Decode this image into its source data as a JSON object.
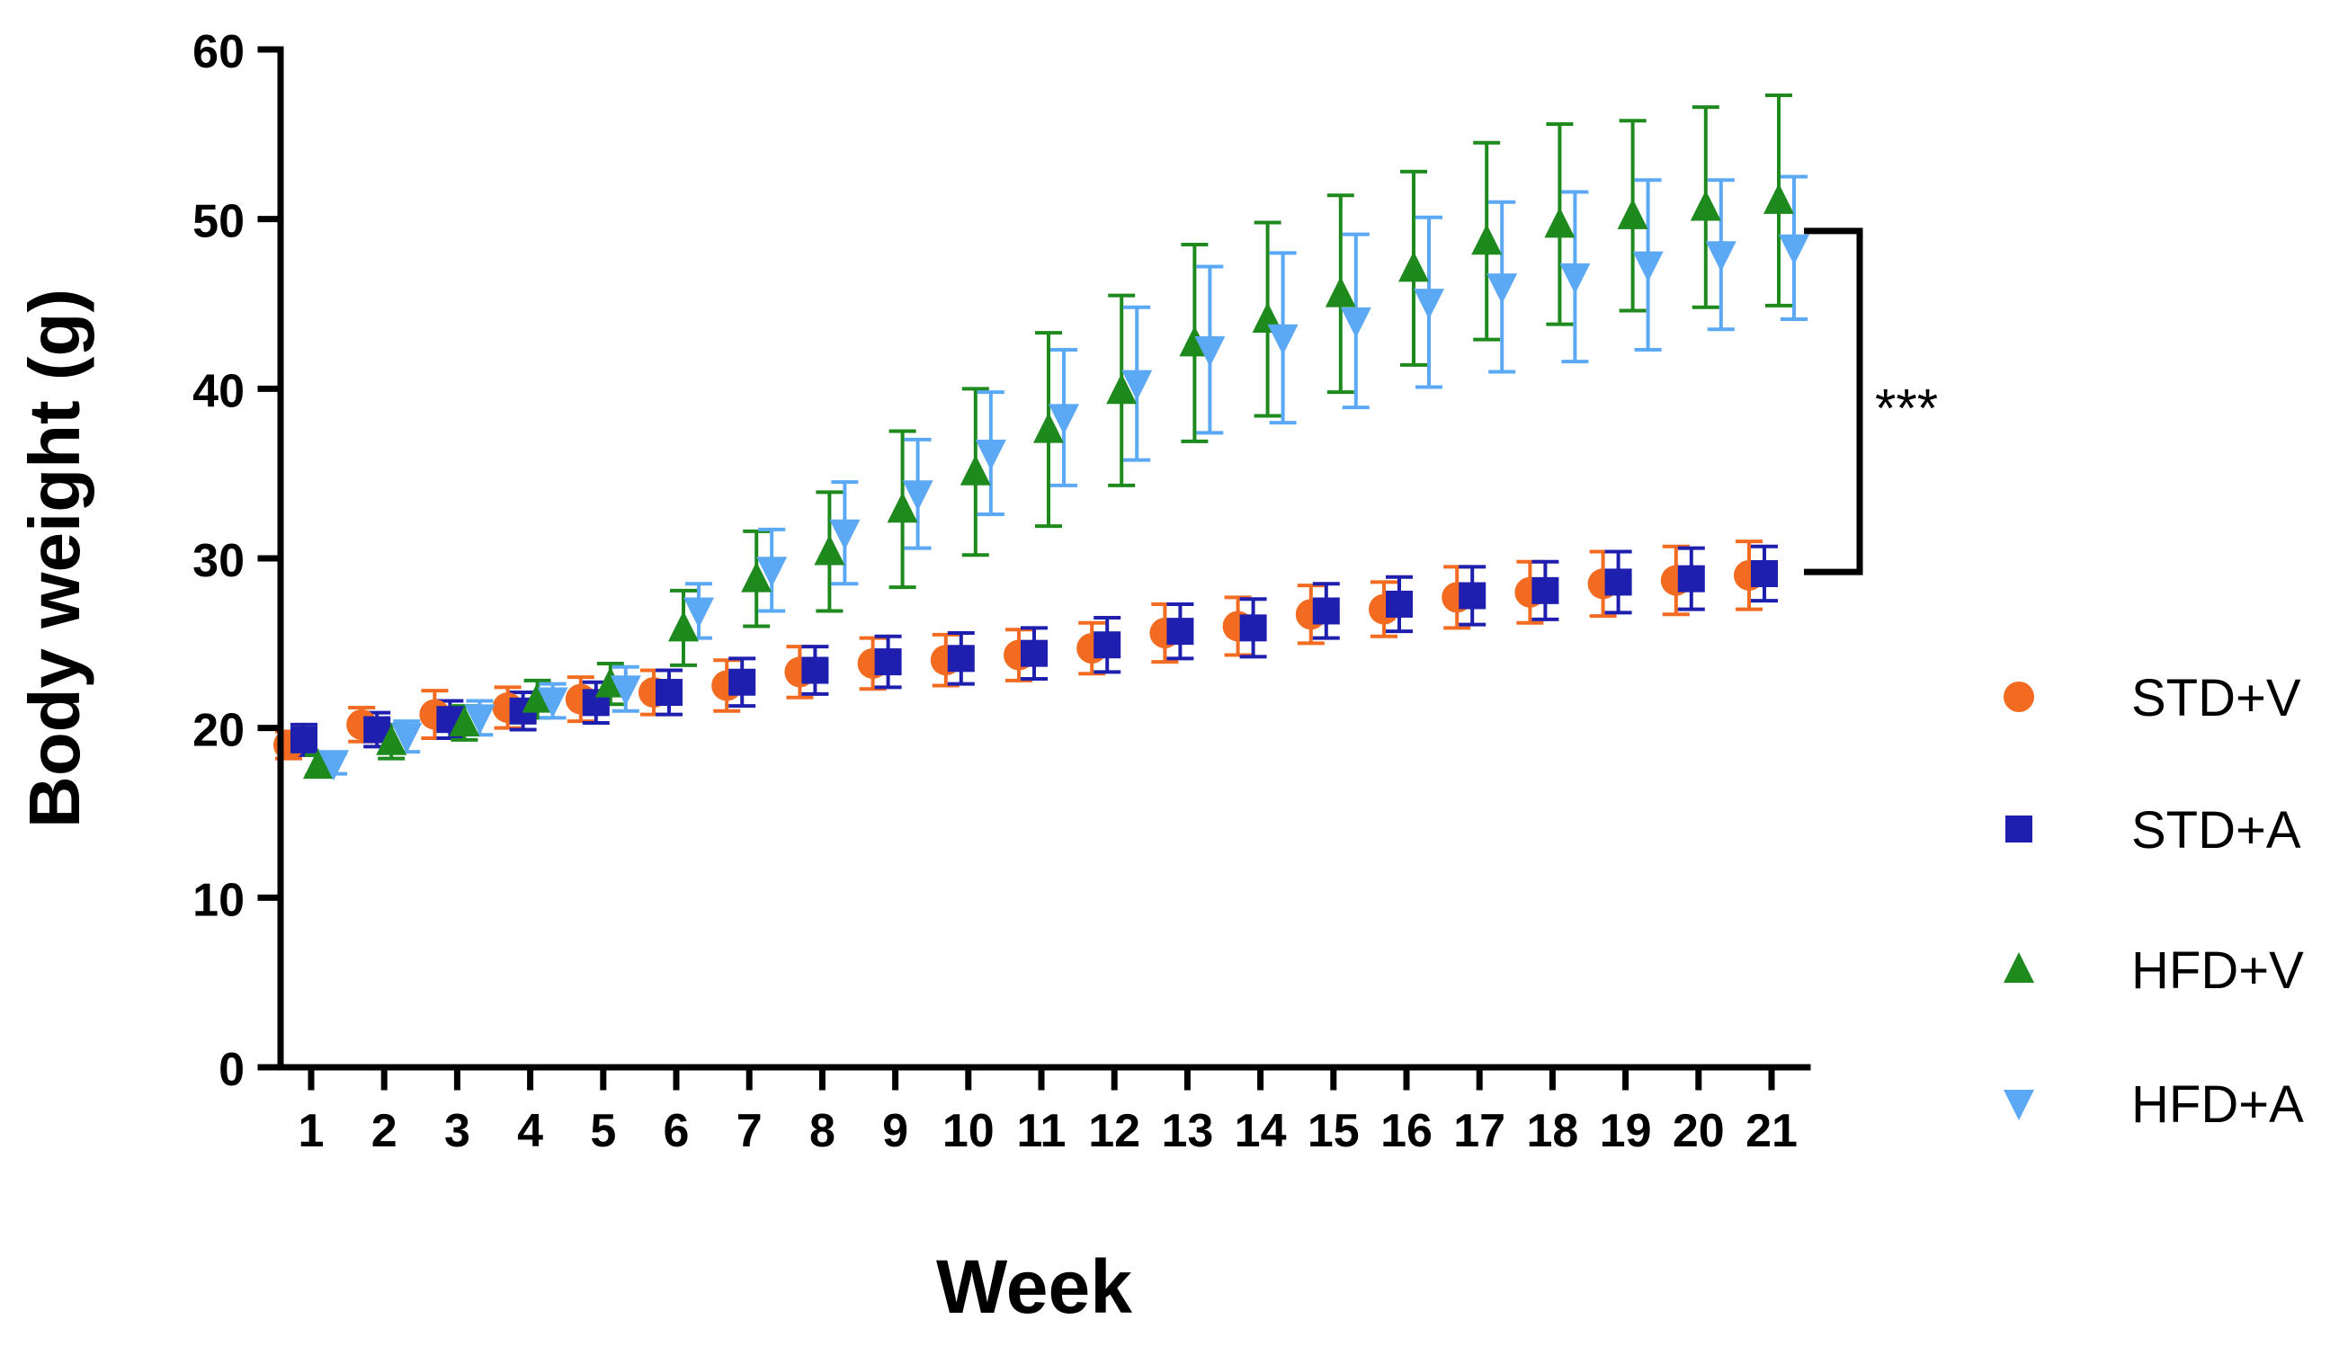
{
  "chart_data": {
    "type": "scatter",
    "title": "",
    "xlabel": "Week",
    "ylabel": "Body weight (g)",
    "ylim": [
      0,
      60
    ],
    "yticks": [
      0,
      10,
      20,
      30,
      40,
      50,
      60
    ],
    "x": [
      1,
      2,
      3,
      4,
      5,
      6,
      7,
      8,
      9,
      10,
      11,
      12,
      13,
      14,
      15,
      16,
      17,
      18,
      19,
      20,
      21
    ],
    "legend_position": "right",
    "series": [
      {
        "name": "STD+V",
        "marker": "circle",
        "color": "#F26B21",
        "values": [
          19.0,
          20.2,
          20.8,
          21.2,
          21.7,
          22.1,
          22.5,
          23.3,
          23.8,
          24.0,
          24.3,
          24.7,
          25.6,
          26.0,
          26.7,
          27.0,
          27.7,
          28.0,
          28.5,
          28.7,
          29.0
        ],
        "errors": [
          0.8,
          1.0,
          1.4,
          1.2,
          1.3,
          1.3,
          1.5,
          1.5,
          1.5,
          1.5,
          1.5,
          1.5,
          1.7,
          1.7,
          1.7,
          1.6,
          1.8,
          1.8,
          1.9,
          2.0,
          2.0
        ]
      },
      {
        "name": "STD+A",
        "marker": "square",
        "color": "#1F1FAF",
        "values": [
          19.3,
          19.9,
          20.5,
          21.0,
          21.5,
          22.1,
          22.7,
          23.4,
          23.9,
          24.1,
          24.4,
          24.9,
          25.7,
          25.9,
          26.9,
          27.3,
          27.8,
          28.1,
          28.6,
          28.8,
          29.1
        ],
        "errors": [
          0.9,
          1.0,
          1.1,
          1.1,
          1.2,
          1.3,
          1.4,
          1.4,
          1.5,
          1.5,
          1.5,
          1.6,
          1.6,
          1.7,
          1.6,
          1.6,
          1.7,
          1.7,
          1.8,
          1.8,
          1.6
        ]
      },
      {
        "name": "HFD+V",
        "marker": "triangle-up",
        "color": "#1E8A1E",
        "values": [
          17.8,
          19.2,
          20.3,
          21.7,
          22.6,
          25.9,
          28.8,
          30.4,
          32.9,
          35.1,
          37.6,
          39.9,
          42.7,
          44.1,
          45.6,
          47.1,
          48.7,
          49.7,
          50.2,
          50.7,
          51.1
        ],
        "errors": [
          0.6,
          1.0,
          1.0,
          1.1,
          1.2,
          2.2,
          2.8,
          3.5,
          4.6,
          4.9,
          5.7,
          5.6,
          5.8,
          5.7,
          5.8,
          5.7,
          5.8,
          5.9,
          5.6,
          5.9,
          6.2
        ]
      },
      {
        "name": "HFD+A",
        "marker": "triangle-down",
        "color": "#5BA8F5",
        "values": [
          17.9,
          19.5,
          20.6,
          21.6,
          22.3,
          26.9,
          29.3,
          31.5,
          33.8,
          36.2,
          38.3,
          40.3,
          42.3,
          43.0,
          44.0,
          45.1,
          46.0,
          46.6,
          47.3,
          47.9,
          48.3
        ],
        "errors": [
          0.6,
          0.9,
          1.0,
          1.0,
          1.3,
          1.6,
          2.4,
          3.0,
          3.2,
          3.6,
          4.0,
          4.5,
          4.9,
          5.0,
          5.1,
          5.0,
          5.0,
          5.0,
          5.0,
          4.4,
          4.2
        ]
      }
    ],
    "significance": {
      "label": "***",
      "from": 29.2,
      "to": 49.3
    }
  }
}
